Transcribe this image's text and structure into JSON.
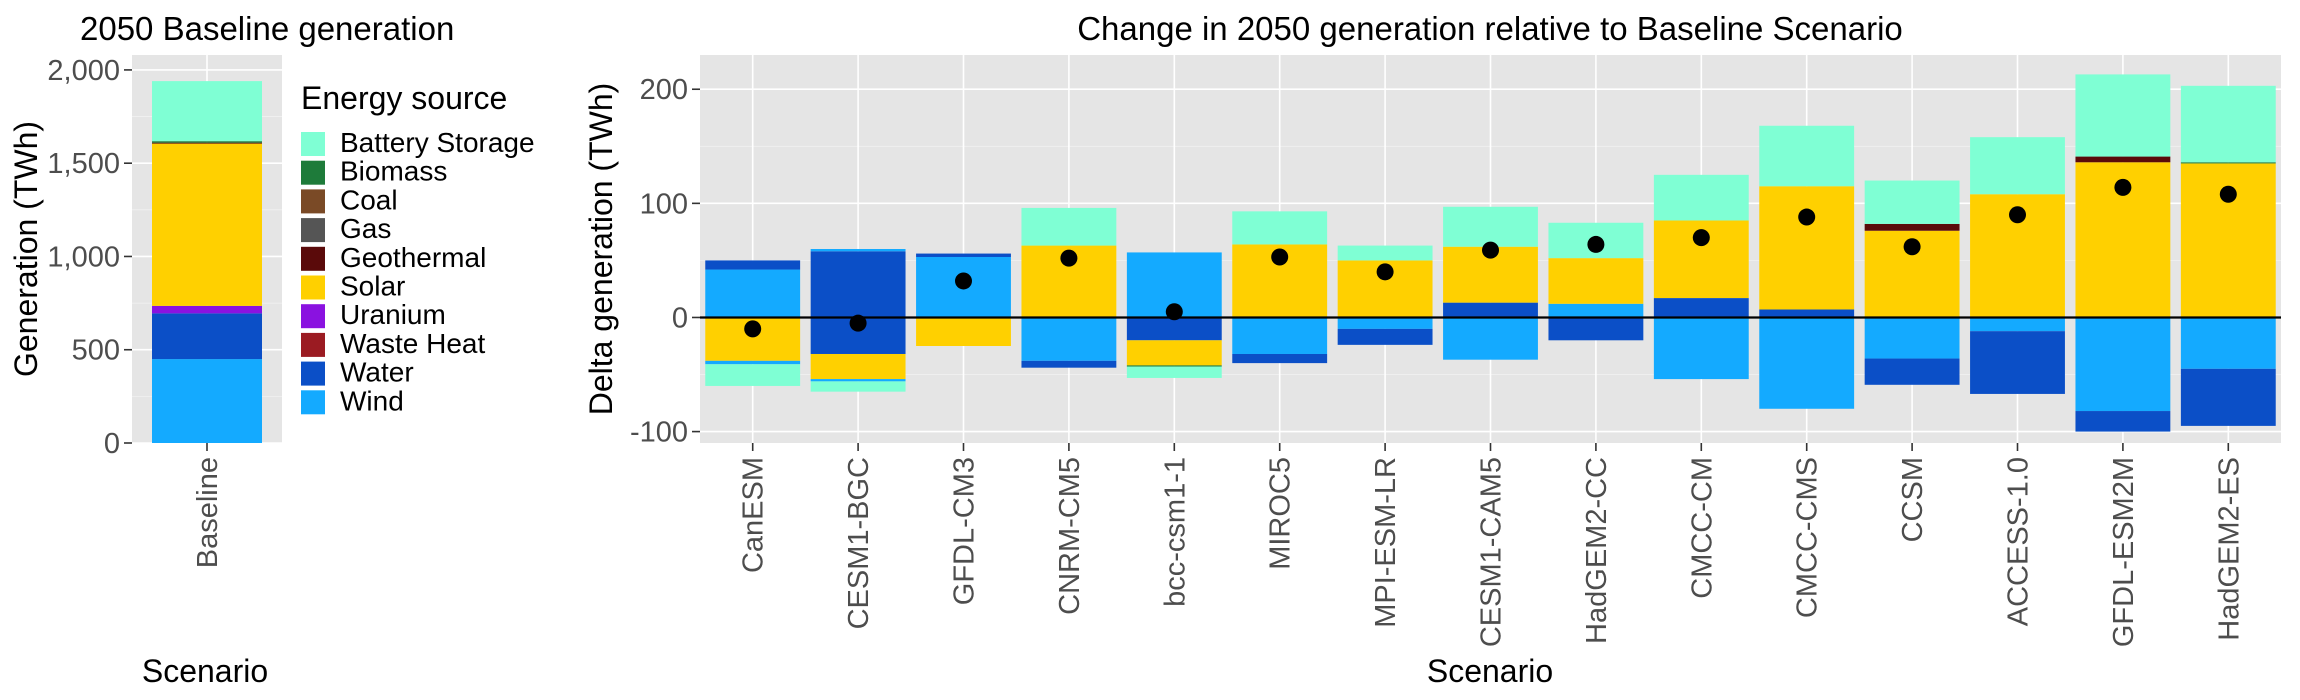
{
  "colors": {
    "Battery Storage": "#7fffd4",
    "Biomass": "#1e7b3a",
    "Coal": "#7a4a26",
    "Gas": "#555555",
    "Geothermal": "#5a0a0a",
    "Solar": "#ffd000",
    "Uranium": "#8a12e0",
    "Waste Heat": "#9b1b22",
    "Water": "#0b4fc7",
    "Wind": "#14aaff",
    "point": "#000000"
  },
  "legend": {
    "title": "Energy source",
    "items": [
      {
        "label": "Battery Storage",
        "color": "#7fffd4"
      },
      {
        "label": "Biomass",
        "color": "#1e7b3a"
      },
      {
        "label": "Coal",
        "color": "#7a4a26"
      },
      {
        "label": "Gas",
        "color": "#555555"
      },
      {
        "label": "Geothermal",
        "color": "#5a0a0a"
      },
      {
        "label": "Solar",
        "color": "#ffd000"
      },
      {
        "label": "Uranium",
        "color": "#8a12e0"
      },
      {
        "label": "Waste Heat",
        "color": "#9b1b22"
      },
      {
        "label": "Water",
        "color": "#0b4fc7"
      },
      {
        "label": "Wind",
        "color": "#14aaff"
      }
    ]
  },
  "chart_data": [
    {
      "type": "bar",
      "stacked": true,
      "title": "2050 Baseline generation",
      "xlabel": "Scenario",
      "ylabel": "Generation (TWh)",
      "ylim": [
        0,
        2080
      ],
      "yticks": [
        0,
        500,
        1000,
        1500,
        2000
      ],
      "ytick_labels": [
        "0",
        "500",
        "1,000",
        "1,500",
        "2,000"
      ],
      "categories": [
        "Baseline"
      ],
      "stack_order": [
        "Wind",
        "Water",
        "Uranium",
        "Solar",
        "Geothermal",
        "Biomass",
        "Battery Storage"
      ],
      "series": [
        {
          "name": "Wind",
          "values": [
            450
          ]
        },
        {
          "name": "Water",
          "values": [
            245
          ]
        },
        {
          "name": "Uranium",
          "values": [
            40
          ]
        },
        {
          "name": "Solar",
          "values": [
            870
          ]
        },
        {
          "name": "Geothermal",
          "values": [
            5
          ]
        },
        {
          "name": "Biomass",
          "values": [
            8
          ]
        },
        {
          "name": "Battery Storage",
          "values": [
            322
          ]
        }
      ],
      "grid": true
    },
    {
      "type": "bar",
      "stacked": true,
      "title": "Change in 2050 generation relative to Baseline Scenario",
      "xlabel": "Scenario",
      "ylabel": "Delta generation (TWh)",
      "ylim": [
        -110,
        230
      ],
      "yticks": [
        -100,
        0,
        100,
        200
      ],
      "ytick_labels": [
        "-100",
        "0",
        "100",
        "200"
      ],
      "categories": [
        "CanESM",
        "CESM1-BGC",
        "GFDL-CM3",
        "CNRM-CM5",
        "bcc-csm1-1",
        "MIROC5",
        "MPI-ESM-LR",
        "CESM1-CAM5",
        "HadGEM2-CC",
        "CMCC-CM",
        "CMCC-CMS",
        "CCSM",
        "ACCESS-1.0",
        "GFDL-ESM2M",
        "HadGEM2-ES"
      ],
      "bars": [
        {
          "pos": [
            {
              "source": "Wind",
              "value": 42
            },
            {
              "source": "Water",
              "value": 8
            }
          ],
          "neg": [
            {
              "source": "Solar",
              "value": -38
            },
            {
              "source": "Wind",
              "value": -3
            },
            {
              "source": "Battery Storage",
              "value": -19
            }
          ],
          "net": -10
        },
        {
          "pos": [
            {
              "source": "Water",
              "value": 58
            },
            {
              "source": "Wind",
              "value": 2
            }
          ],
          "neg": [
            {
              "source": "Water",
              "value": -32
            },
            {
              "source": "Solar",
              "value": -22
            },
            {
              "source": "Wind",
              "value": -2
            },
            {
              "source": "Battery Storage",
              "value": -9
            }
          ],
          "net": -5
        },
        {
          "pos": [
            {
              "source": "Wind",
              "value": 53
            },
            {
              "source": "Water",
              "value": 3
            }
          ],
          "neg": [
            {
              "source": "Solar",
              "value": -25
            }
          ],
          "net": 32
        },
        {
          "pos": [
            {
              "source": "Solar",
              "value": 63
            },
            {
              "source": "Battery Storage",
              "value": 33
            }
          ],
          "neg": [
            {
              "source": "Wind",
              "value": -38
            },
            {
              "source": "Water",
              "value": -6
            }
          ],
          "net": 52
        },
        {
          "pos": [
            {
              "source": "Wind",
              "value": 57
            }
          ],
          "neg": [
            {
              "source": "Water",
              "value": -20
            },
            {
              "source": "Solar",
              "value": -22
            },
            {
              "source": "Biomass",
              "value": -1
            },
            {
              "source": "Battery Storage",
              "value": -10
            }
          ],
          "net": 5
        },
        {
          "pos": [
            {
              "source": "Solar",
              "value": 64
            },
            {
              "source": "Battery Storage",
              "value": 29
            }
          ],
          "neg": [
            {
              "source": "Wind",
              "value": -32
            },
            {
              "source": "Water",
              "value": -8
            }
          ],
          "net": 53
        },
        {
          "pos": [
            {
              "source": "Solar",
              "value": 50
            },
            {
              "source": "Battery Storage",
              "value": 13
            }
          ],
          "neg": [
            {
              "source": "Wind",
              "value": -10
            },
            {
              "source": "Water",
              "value": -14
            }
          ],
          "net": 40
        },
        {
          "pos": [
            {
              "source": "Water",
              "value": 13
            },
            {
              "source": "Solar",
              "value": 49
            },
            {
              "source": "Battery Storage",
              "value": 35
            }
          ],
          "neg": [
            {
              "source": "Wind",
              "value": -37
            }
          ],
          "net": 59
        },
        {
          "pos": [
            {
              "source": "Wind",
              "value": 12
            },
            {
              "source": "Solar",
              "value": 40
            },
            {
              "source": "Battery Storage",
              "value": 31
            }
          ],
          "neg": [
            {
              "source": "Water",
              "value": -20
            }
          ],
          "net": 64
        },
        {
          "pos": [
            {
              "source": "Water",
              "value": 17
            },
            {
              "source": "Solar",
              "value": 68
            },
            {
              "source": "Battery Storage",
              "value": 40
            }
          ],
          "neg": [
            {
              "source": "Wind",
              "value": -54
            }
          ],
          "net": 70
        },
        {
          "pos": [
            {
              "source": "Water",
              "value": 7
            },
            {
              "source": "Solar",
              "value": 108
            },
            {
              "source": "Battery Storage",
              "value": 53
            }
          ],
          "neg": [
            {
              "source": "Wind",
              "value": -80
            }
          ],
          "net": 88
        },
        {
          "pos": [
            {
              "source": "Solar",
              "value": 76
            },
            {
              "source": "Geothermal",
              "value": 6
            },
            {
              "source": "Battery Storage",
              "value": 38
            }
          ],
          "neg": [
            {
              "source": "Wind",
              "value": -36
            },
            {
              "source": "Water",
              "value": -23
            }
          ],
          "net": 62
        },
        {
          "pos": [
            {
              "source": "Solar",
              "value": 108
            },
            {
              "source": "Battery Storage",
              "value": 50
            }
          ],
          "neg": [
            {
              "source": "Wind",
              "value": -12
            },
            {
              "source": "Water",
              "value": -55
            }
          ],
          "net": 90
        },
        {
          "pos": [
            {
              "source": "Solar",
              "value": 136
            },
            {
              "source": "Geothermal",
              "value": 5
            },
            {
              "source": "Battery Storage",
              "value": 72
            }
          ],
          "neg": [
            {
              "source": "Wind",
              "value": -82
            },
            {
              "source": "Water",
              "value": -18
            }
          ],
          "net": 114
        },
        {
          "pos": [
            {
              "source": "Solar",
              "value": 135
            },
            {
              "source": "Biomass",
              "value": 1
            },
            {
              "source": "Battery Storage",
              "value": 67
            }
          ],
          "neg": [
            {
              "source": "Wind",
              "value": -45
            },
            {
              "source": "Water",
              "value": -50
            }
          ],
          "net": 108
        }
      ],
      "points": "net change",
      "grid": true
    }
  ]
}
